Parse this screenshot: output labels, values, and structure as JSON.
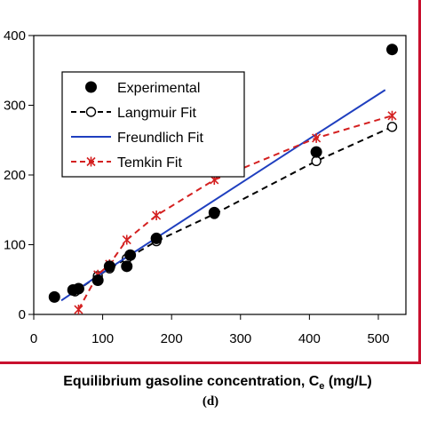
{
  "chart_data": {
    "type": "scatter",
    "title": "",
    "xlabel": "Equilibrium gasoline concentration, C",
    "xlabel_sub": "e",
    "xlabel_unit": " (mg/L)",
    "ylabel": "",
    "xlim": [
      0,
      540
    ],
    "ylim": [
      0,
      400
    ],
    "x_ticks": [
      0,
      100,
      200,
      300,
      400,
      500
    ],
    "y_ticks": [
      0,
      100,
      200,
      300,
      400
    ],
    "y_tick_labels": [
      "0",
      "100",
      "200",
      "300",
      "400"
    ],
    "grid": false,
    "legend_position": "upper-left",
    "series": [
      {
        "name": "Experimental",
        "kind": "points",
        "color": "#000000",
        "x": [
          30,
          57,
          65,
          93,
          110,
          135,
          140,
          178,
          262,
          410,
          520
        ],
        "y": [
          25,
          35,
          37,
          49,
          69,
          69,
          85,
          109,
          146,
          233,
          380
        ]
      },
      {
        "name": "Langmuir Fit",
        "kind": "dashed-open-circles",
        "color": "#000000",
        "x": [
          60,
          65,
          93,
          110,
          135,
          178,
          262,
          410,
          520
        ],
        "y": [
          33,
          36,
          55,
          66,
          80,
          105,
          144,
          220,
          269
        ]
      },
      {
        "name": "Freundlich Fit",
        "kind": "line",
        "color": "#1f3fbf",
        "x": [
          40,
          100,
          200,
          300,
          400,
          510
        ],
        "y": [
          20,
          60,
          124,
          188,
          252,
          322
        ]
      },
      {
        "name": "Temkin Fit",
        "kind": "dashed-crosses",
        "color": "#d42020",
        "x": [
          65,
          93,
          110,
          135,
          178,
          262,
          410,
          520
        ],
        "y": [
          7,
          57,
          72,
          107,
          142,
          193,
          253,
          285
        ]
      }
    ]
  },
  "caption": "(d)",
  "colors": {
    "frame": "#c8102e"
  }
}
